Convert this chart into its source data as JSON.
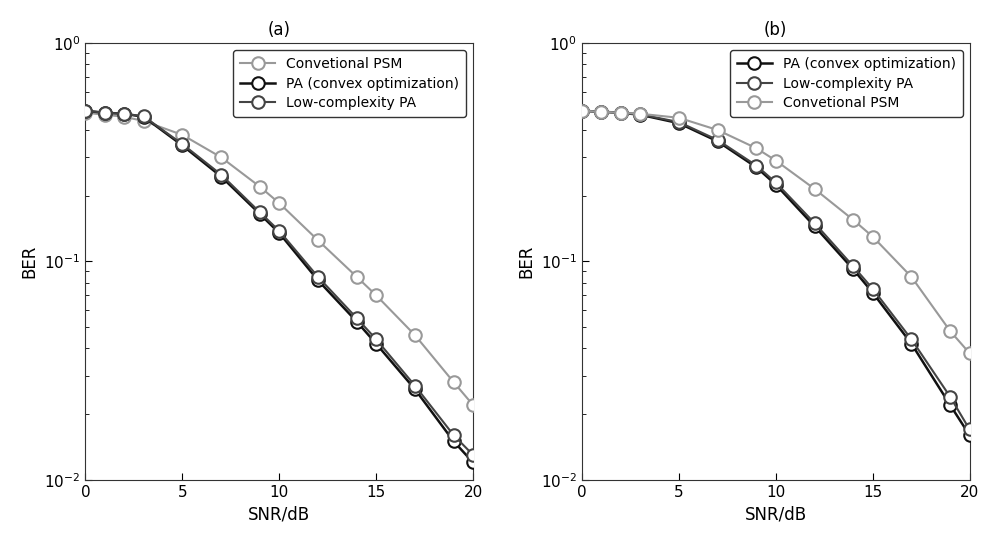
{
  "subplot_a": {
    "title": "(a)",
    "xlabel": "SNR/dB",
    "ylabel": "BER",
    "ylim_low": 0.01,
    "ylim_high": 1.0,
    "xlim": [
      0,
      20
    ],
    "legend_order": [
      "Convetional PSM",
      "PA (convex optimization)",
      "Low-complexity PA"
    ],
    "curves": [
      {
        "label": "Convetional PSM",
        "color": "#999999",
        "linewidth": 1.5,
        "marker": "o",
        "markersize": 9,
        "markeredgecolor": "#999999",
        "markerfacecolor": "white",
        "snr_points": [
          0,
          1,
          2,
          3,
          5,
          7,
          9,
          10,
          12,
          14,
          15,
          17,
          19,
          20
        ],
        "ber_points": [
          0.48,
          0.47,
          0.46,
          0.44,
          0.38,
          0.3,
          0.22,
          0.185,
          0.125,
          0.085,
          0.07,
          0.046,
          0.028,
          0.022
        ]
      },
      {
        "label": "PA (convex optimization)",
        "color": "#111111",
        "linewidth": 1.8,
        "marker": "o",
        "markersize": 9,
        "markeredgecolor": "#111111",
        "markerfacecolor": "white",
        "snr_points": [
          0,
          1,
          2,
          3,
          5,
          7,
          9,
          10,
          12,
          14,
          15,
          17,
          19,
          20
        ],
        "ber_points": [
          0.49,
          0.48,
          0.475,
          0.46,
          0.34,
          0.245,
          0.165,
          0.135,
          0.082,
          0.053,
          0.042,
          0.026,
          0.015,
          0.012
        ]
      },
      {
        "label": "Low-complexity PA",
        "color": "#444444",
        "linewidth": 1.5,
        "marker": "o",
        "markersize": 9,
        "markeredgecolor": "#444444",
        "markerfacecolor": "white",
        "snr_points": [
          0,
          1,
          2,
          3,
          5,
          7,
          9,
          10,
          12,
          14,
          15,
          17,
          19,
          20
        ],
        "ber_points": [
          0.49,
          0.48,
          0.475,
          0.462,
          0.345,
          0.25,
          0.168,
          0.138,
          0.085,
          0.055,
          0.044,
          0.027,
          0.016,
          0.013
        ]
      }
    ]
  },
  "subplot_b": {
    "title": "(b)",
    "xlabel": "SNR/dB",
    "ylabel": "BER",
    "ylim_low": 0.01,
    "ylim_high": 1.0,
    "xlim": [
      0,
      20
    ],
    "legend_order": [
      "PA (convex optimization)",
      "Low-complexity PA",
      "Convetional PSM"
    ],
    "curves": [
      {
        "label": "PA (convex optimization)",
        "color": "#111111",
        "linewidth": 1.8,
        "marker": "o",
        "markersize": 9,
        "markeredgecolor": "#111111",
        "markerfacecolor": "white",
        "snr_points": [
          0,
          1,
          2,
          3,
          5,
          7,
          9,
          10,
          12,
          14,
          15,
          17,
          19,
          20
        ],
        "ber_points": [
          0.49,
          0.485,
          0.48,
          0.47,
          0.43,
          0.355,
          0.27,
          0.225,
          0.145,
          0.092,
          0.072,
          0.042,
          0.022,
          0.016
        ]
      },
      {
        "label": "Low-complexity PA",
        "color": "#444444",
        "linewidth": 1.5,
        "marker": "o",
        "markersize": 9,
        "markeredgecolor": "#444444",
        "markerfacecolor": "white",
        "snr_points": [
          0,
          1,
          2,
          3,
          5,
          7,
          9,
          10,
          12,
          14,
          15,
          17,
          19,
          20
        ],
        "ber_points": [
          0.49,
          0.485,
          0.48,
          0.472,
          0.435,
          0.36,
          0.275,
          0.23,
          0.15,
          0.095,
          0.075,
          0.044,
          0.024,
          0.017
        ]
      },
      {
        "label": "Convetional PSM",
        "color": "#999999",
        "linewidth": 1.5,
        "marker": "o",
        "markersize": 9,
        "markeredgecolor": "#999999",
        "markerfacecolor": "white",
        "snr_points": [
          0,
          1,
          2,
          3,
          5,
          7,
          9,
          10,
          12,
          14,
          15,
          17,
          19,
          20
        ],
        "ber_points": [
          0.49,
          0.485,
          0.48,
          0.475,
          0.455,
          0.4,
          0.33,
          0.29,
          0.215,
          0.155,
          0.13,
          0.085,
          0.048,
          0.038
        ]
      }
    ]
  },
  "fig_bg": "#ffffff",
  "axes_bg": "#ffffff",
  "tick_fontsize": 11,
  "label_fontsize": 12,
  "title_fontsize": 12,
  "legend_fontsize": 10
}
